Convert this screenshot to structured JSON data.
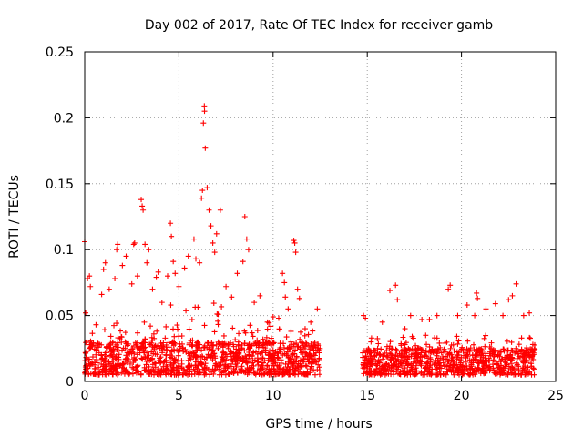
{
  "chart_data": {
    "type": "scatter",
    "title": "Day 002 of 2017, Rate Of TEC Index for receiver gamb",
    "xlabel": "GPS time / hours",
    "ylabel": "ROTI / TECUs",
    "xlim": [
      0,
      25
    ],
    "ylim": [
      0,
      0.25
    ],
    "xticks": [
      0,
      5,
      10,
      15,
      20,
      25
    ],
    "yticks": [
      0,
      0.05,
      0.1,
      0.15,
      0.2,
      0.25
    ],
    "xtick_labels": [
      "0",
      "5",
      "10",
      "15",
      "20",
      "25"
    ],
    "ytick_labels": [
      "0",
      "0.05",
      "0.1",
      "0.15",
      "0.2",
      "0.25"
    ],
    "grid": true,
    "marker": "+",
    "color": "#ff0000",
    "series": [
      {
        "name": "ROTI",
        "data_gaps_hours": [
          [
            12.5,
            14.75
          ]
        ],
        "segments": [
          {
            "x_range": [
              0,
              12.5
            ],
            "baseline": [
              0.005,
              0.03
            ]
          },
          {
            "x_range": [
              14.75,
              23.9
            ],
            "baseline": [
              0.005,
              0.025
            ]
          }
        ],
        "points": [
          [
            0.0,
            0.106
          ],
          [
            0.05,
            0.052
          ],
          [
            0.15,
            0.078
          ],
          [
            0.25,
            0.08
          ],
          [
            0.3,
            0.072
          ],
          [
            0.6,
            0.043
          ],
          [
            0.9,
            0.066
          ],
          [
            1.0,
            0.085
          ],
          [
            1.1,
            0.09
          ],
          [
            1.3,
            0.07
          ],
          [
            1.6,
            0.078
          ],
          [
            1.7,
            0.1
          ],
          [
            1.75,
            0.104
          ],
          [
            2.0,
            0.088
          ],
          [
            2.2,
            0.095
          ],
          [
            2.5,
            0.074
          ],
          [
            2.6,
            0.104
          ],
          [
            2.65,
            0.105
          ],
          [
            2.8,
            0.08
          ],
          [
            3.0,
            0.138
          ],
          [
            3.05,
            0.133
          ],
          [
            3.1,
            0.13
          ],
          [
            3.2,
            0.104
          ],
          [
            3.3,
            0.09
          ],
          [
            3.4,
            0.1
          ],
          [
            3.6,
            0.07
          ],
          [
            3.8,
            0.079
          ],
          [
            3.9,
            0.083
          ],
          [
            4.1,
            0.06
          ],
          [
            4.4,
            0.08
          ],
          [
            4.55,
            0.12
          ],
          [
            4.6,
            0.11
          ],
          [
            4.7,
            0.091
          ],
          [
            4.8,
            0.082
          ],
          [
            5.0,
            0.072
          ],
          [
            5.3,
            0.086
          ],
          [
            5.5,
            0.095
          ],
          [
            5.8,
            0.108
          ],
          [
            5.9,
            0.093
          ],
          [
            6.1,
            0.09
          ],
          [
            6.2,
            0.139
          ],
          [
            6.25,
            0.145
          ],
          [
            6.3,
            0.196
          ],
          [
            6.35,
            0.209
          ],
          [
            6.36,
            0.205
          ],
          [
            6.4,
            0.177
          ],
          [
            6.5,
            0.147
          ],
          [
            6.6,
            0.13
          ],
          [
            6.7,
            0.118
          ],
          [
            6.8,
            0.105
          ],
          [
            6.9,
            0.098
          ],
          [
            7.0,
            0.112
          ],
          [
            7.2,
            0.13
          ],
          [
            7.5,
            0.072
          ],
          [
            7.8,
            0.064
          ],
          [
            8.1,
            0.082
          ],
          [
            8.4,
            0.091
          ],
          [
            8.5,
            0.125
          ],
          [
            8.6,
            0.108
          ],
          [
            8.7,
            0.1
          ],
          [
            9.0,
            0.06
          ],
          [
            9.3,
            0.065
          ],
          [
            9.7,
            0.045
          ],
          [
            10.0,
            0.049
          ],
          [
            10.3,
            0.048
          ],
          [
            10.5,
            0.082
          ],
          [
            10.6,
            0.075
          ],
          [
            10.65,
            0.064
          ],
          [
            10.8,
            0.055
          ],
          [
            11.1,
            0.107
          ],
          [
            11.15,
            0.105
          ],
          [
            11.2,
            0.098
          ],
          [
            11.3,
            0.07
          ],
          [
            11.4,
            0.063
          ],
          [
            11.7,
            0.04
          ],
          [
            12.0,
            0.045
          ],
          [
            12.35,
            0.055
          ],
          [
            14.8,
            0.05
          ],
          [
            14.9,
            0.048
          ],
          [
            15.2,
            0.03
          ],
          [
            15.8,
            0.045
          ],
          [
            16.2,
            0.069
          ],
          [
            16.5,
            0.073
          ],
          [
            16.6,
            0.062
          ],
          [
            17.0,
            0.04
          ],
          [
            17.3,
            0.05
          ],
          [
            17.9,
            0.047
          ],
          [
            18.3,
            0.047
          ],
          [
            18.7,
            0.05
          ],
          [
            19.3,
            0.07
          ],
          [
            19.4,
            0.073
          ],
          [
            19.8,
            0.05
          ],
          [
            20.3,
            0.058
          ],
          [
            20.7,
            0.05
          ],
          [
            20.8,
            0.067
          ],
          [
            20.85,
            0.063
          ],
          [
            21.3,
            0.055
          ],
          [
            21.8,
            0.059
          ],
          [
            22.2,
            0.05
          ],
          [
            22.5,
            0.062
          ],
          [
            22.7,
            0.065
          ],
          [
            22.9,
            0.074
          ],
          [
            23.3,
            0.05
          ],
          [
            23.6,
            0.052
          ]
        ]
      }
    ]
  }
}
